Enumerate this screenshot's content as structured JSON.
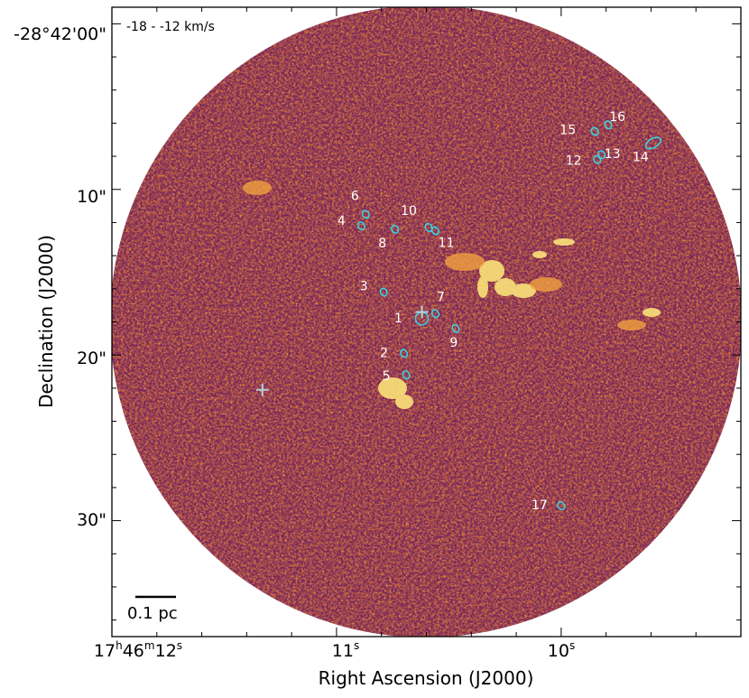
{
  "chart_data": {
    "type": "image",
    "velocity_range": "-18 - -12  km/s",
    "xlabel": "Right Ascension (J2000)",
    "ylabel": "Declination (J2000)",
    "x_ticks": [
      {
        "label_h": "17",
        "label_m": "46",
        "label_s": "12",
        "ra_s": 12.0
      },
      {
        "label_s": "11",
        "ra_s": 11.0
      },
      {
        "label_s": "10",
        "ra_s": 10.0
      }
    ],
    "y_ticks": [
      {
        "label": "-28°42'00\"",
        "dec_arcsec": 0
      },
      {
        "label": "10\"",
        "dec_arcsec": 10
      },
      {
        "label": "20\"",
        "dec_arcsec": 20
      },
      {
        "label": "30\"",
        "dec_arcsec": 30
      }
    ],
    "xlim_ra_s": [
      12.0,
      9.2
    ],
    "ylim_dec_arcsec": [
      -1,
      37
    ],
    "scale_bar": {
      "label": "0.1 pc"
    },
    "sources": [
      {
        "id": "1",
        "ra_s": 10.62,
        "dec": 17.8
      },
      {
        "id": "2",
        "ra_s": 10.7,
        "dec": 19.9
      },
      {
        "id": "3",
        "ra_s": 10.79,
        "dec": 16.2
      },
      {
        "id": "4",
        "ra_s": 10.89,
        "dec": 12.2
      },
      {
        "id": "5",
        "ra_s": 10.69,
        "dec": 21.2
      },
      {
        "id": "6",
        "ra_s": 10.87,
        "dec": 11.5
      },
      {
        "id": "7",
        "ra_s": 10.56,
        "dec": 17.5
      },
      {
        "id": "8",
        "ra_s": 10.74,
        "dec": 12.4
      },
      {
        "id": "9",
        "ra_s": 10.47,
        "dec": 18.4
      },
      {
        "id": "10",
        "ra_s": 10.59,
        "dec": 12.3
      },
      {
        "id": "11",
        "ra_s": 10.56,
        "dec": 12.5
      },
      {
        "id": "12",
        "ra_s": 9.84,
        "dec": 8.2
      },
      {
        "id": "13",
        "ra_s": 9.82,
        "dec": 7.9
      },
      {
        "id": "14",
        "ra_s": 9.59,
        "dec": 7.2
      },
      {
        "id": "15",
        "ra_s": 9.85,
        "dec": 6.5
      },
      {
        "id": "16",
        "ra_s": 9.79,
        "dec": 6.1
      },
      {
        "id": "17",
        "ra_s": 10.0,
        "dec": 29.1
      }
    ],
    "markers": [
      {
        "type": "plus",
        "ra_s": 11.33,
        "dec": 22.1
      },
      {
        "type": "plus",
        "ra_s": 10.62,
        "dec": 17.4
      }
    ]
  }
}
